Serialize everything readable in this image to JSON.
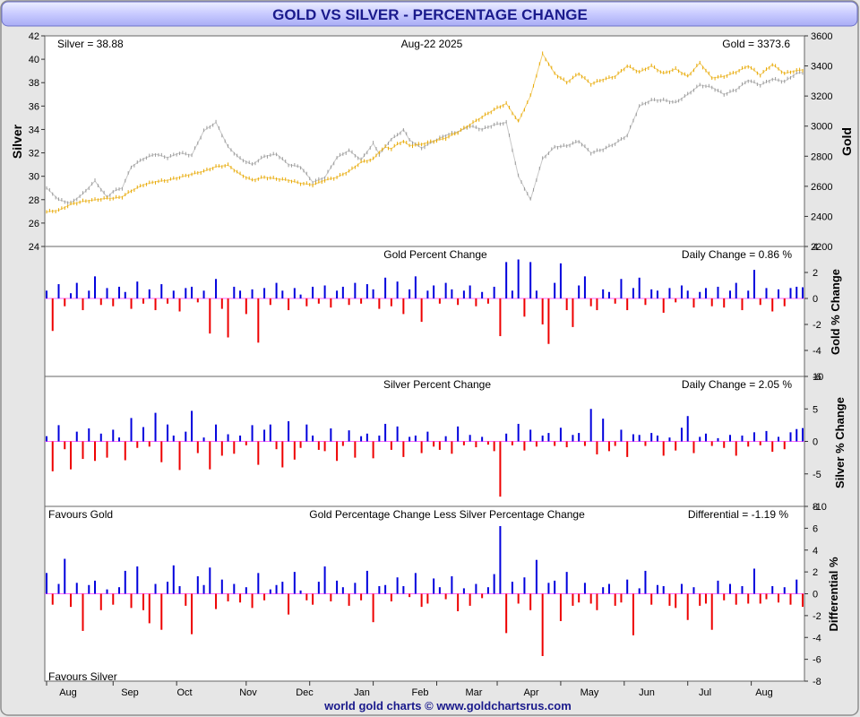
{
  "title": "GOLD VS SILVER - PERCENTAGE CHANGE",
  "footer": "world gold charts © www.goldchartsrus.com",
  "colors": {
    "gold": "#e8a800",
    "silver": "#9a9a9a",
    "up": "#0000dd",
    "down": "#ee0000",
    "title_text": "#1a1a8c",
    "title_band": "#c8caff",
    "background": "#e6e6e6",
    "zero_line": "#ff66ff"
  },
  "x_months": [
    "Aug",
    "Sep",
    "Oct",
    "Nov",
    "Dec",
    "Jan",
    "Feb",
    "Mar",
    "Apr",
    "May",
    "Jun",
    "Jul",
    "Aug"
  ],
  "chart_data": [
    {
      "type": "line",
      "name": "price",
      "title": "Aug-22  2025",
      "left_label": "Silver = 38.88",
      "right_label": "Gold = 3373.6",
      "ylabel_left": "Silver",
      "ylabel_right": "Gold",
      "ylim_left": [
        24,
        42
      ],
      "ylim_right": [
        2200,
        3600
      ],
      "yticks_left": [
        24,
        26,
        28,
        30,
        32,
        34,
        36,
        38,
        40,
        42
      ],
      "yticks_right": [
        2200,
        2400,
        2600,
        2800,
        3000,
        3200,
        3400,
        3600
      ],
      "grid": false,
      "series": [
        {
          "name": "Silver",
          "axis": "left",
          "color_key": "silver",
          "x": [
            0,
            4,
            8,
            12,
            16,
            20,
            22,
            25,
            28,
            32,
            36,
            40,
            44,
            48,
            52,
            56,
            60,
            64,
            68,
            72,
            76,
            80,
            84,
            88,
            92,
            96,
            100,
            104,
            108,
            110,
            112,
            114,
            116,
            118,
            120,
            124,
            128,
            132,
            136,
            140,
            144,
            148,
            152,
            156,
            160,
            164,
            168,
            172,
            176,
            180,
            184,
            188,
            192,
            196,
            200,
            204,
            208,
            212,
            216,
            220,
            224,
            228,
            232,
            236,
            240,
            244,
            248,
            250
          ],
          "values": [
            29.0,
            28.0,
            27.7,
            28.5,
            29.6,
            28.2,
            28.7,
            29.0,
            30.8,
            31.5,
            31.9,
            31.6,
            32.0,
            31.8,
            33.9,
            34.6,
            32.5,
            31.5,
            31.0,
            31.7,
            31.9,
            31.0,
            30.8,
            29.5,
            29.9,
            31.6,
            32.2,
            31.4,
            32.8,
            31.9,
            32.5,
            33.2,
            33.5,
            34.0,
            33.1,
            32.4,
            33.0,
            33.5,
            33.8,
            34.3,
            34.0,
            34.4,
            34.6,
            30.0,
            28.0,
            31.5,
            32.5,
            32.6,
            33.0,
            32.0,
            32.3,
            32.8,
            33.5,
            36.0,
            36.5,
            36.5,
            36.3,
            37.0,
            37.8,
            37.6,
            37.0,
            37.4,
            38.2,
            37.8,
            38.3,
            38.1,
            38.8,
            38.88
          ]
        },
        {
          "name": "Gold",
          "axis": "right",
          "color_key": "gold",
          "x": [
            0,
            4,
            8,
            12,
            16,
            20,
            22,
            25,
            28,
            32,
            36,
            40,
            44,
            48,
            52,
            56,
            60,
            64,
            68,
            72,
            76,
            80,
            84,
            88,
            92,
            96,
            100,
            104,
            108,
            110,
            112,
            114,
            116,
            118,
            120,
            124,
            128,
            132,
            136,
            140,
            144,
            148,
            152,
            156,
            160,
            164,
            168,
            172,
            176,
            180,
            184,
            188,
            192,
            196,
            200,
            204,
            208,
            212,
            216,
            220,
            224,
            228,
            232,
            236,
            240,
            244,
            248,
            250
          ],
          "values": [
            2430,
            2440,
            2480,
            2500,
            2510,
            2520,
            2520,
            2530,
            2570,
            2610,
            2630,
            2640,
            2660,
            2680,
            2700,
            2730,
            2740,
            2680,
            2640,
            2660,
            2650,
            2640,
            2620,
            2610,
            2640,
            2660,
            2700,
            2760,
            2780,
            2830,
            2860,
            2850,
            2880,
            2900,
            2870,
            2880,
            2900,
            2920,
            2960,
            3010,
            3060,
            3110,
            3150,
            3030,
            3200,
            3480,
            3350,
            3290,
            3350,
            3280,
            3310,
            3330,
            3400,
            3360,
            3400,
            3350,
            3380,
            3330,
            3420,
            3320,
            3330,
            3360,
            3400,
            3340,
            3410,
            3350,
            3370,
            3373.6
          ]
        }
      ]
    },
    {
      "type": "bar",
      "name": "gold_pct",
      "title": "Gold Percent Change",
      "right_label": "Daily Change = 0.86 %",
      "ylabel": "Gold % Change",
      "ylim": [
        -6,
        4
      ],
      "yticks": [
        -6,
        -4,
        -2,
        0,
        2,
        4
      ],
      "x": [
        0,
        2,
        4,
        6,
        8,
        10,
        12,
        14,
        16,
        18,
        20,
        22,
        24,
        26,
        28,
        30,
        32,
        34,
        36,
        38,
        40,
        42,
        44,
        46,
        48,
        50,
        52,
        54,
        56,
        58,
        60,
        62,
        64,
        66,
        68,
        70,
        72,
        74,
        76,
        78,
        80,
        82,
        84,
        86,
        88,
        90,
        92,
        94,
        96,
        98,
        100,
        102,
        104,
        106,
        108,
        110,
        112,
        114,
        116,
        118,
        120,
        122,
        124,
        126,
        128,
        130,
        132,
        134,
        136,
        138,
        140,
        142,
        144,
        146,
        148,
        150,
        152,
        154,
        156,
        158,
        160,
        162,
        164,
        166,
        168,
        170,
        172,
        174,
        176,
        178,
        180,
        182,
        184,
        186,
        188,
        190,
        192,
        194,
        196,
        198,
        200,
        202,
        204,
        206,
        208,
        210,
        212,
        214,
        216,
        218,
        220,
        222,
        224,
        226,
        228,
        230,
        232,
        234,
        236,
        238,
        240,
        242,
        244,
        246,
        248,
        250
      ],
      "values": [
        0.6,
        -2.5,
        1.1,
        -0.6,
        0.4,
        1.2,
        -0.9,
        0.6,
        1.7,
        -0.5,
        0.8,
        -0.6,
        0.9,
        0.5,
        -0.8,
        1.3,
        -0.4,
        0.7,
        -0.9,
        1.1,
        -0.4,
        0.6,
        -1.0,
        0.8,
        0.9,
        -0.3,
        0.6,
        -2.7,
        1.5,
        -0.8,
        -3.0,
        0.9,
        0.6,
        -1.2,
        0.7,
        -3.4,
        0.8,
        -0.5,
        1.2,
        0.6,
        -0.9,
        0.8,
        0.3,
        -0.6,
        0.9,
        -0.4,
        1.0,
        -0.7,
        0.6,
        0.9,
        -0.5,
        1.2,
        -0.4,
        1.1,
        0.7,
        -0.8,
        1.6,
        -0.6,
        1.3,
        -1.2,
        0.7,
        1.7,
        -1.8,
        0.6,
        1.0,
        -0.4,
        1.2,
        0.7,
        -0.5,
        0.6,
        1.0,
        -0.6,
        0.5,
        -0.4,
        0.9,
        -2.9,
        2.8,
        0.6,
        3.0,
        -1.4,
        2.8,
        0.6,
        -2.0,
        -3.5,
        1.2,
        2.7,
        -0.9,
        -2.2,
        1.0,
        1.7,
        -0.6,
        -0.9,
        0.7,
        0.5,
        -0.4,
        1.5,
        -0.9,
        0.8,
        1.6,
        -0.5,
        0.7,
        0.6,
        -1.1,
        0.8,
        -0.3,
        1.0,
        0.6,
        -0.7,
        0.5,
        0.8,
        -0.6,
        0.9,
        -0.7,
        0.6,
        1.2,
        -0.9,
        0.6,
        2.2,
        -0.5,
        0.8,
        -1.0,
        0.7,
        -0.6,
        0.8,
        0.9,
        0.86
      ]
    },
    {
      "type": "bar",
      "name": "silver_pct",
      "title": "Silver Percent Change",
      "right_label": "Daily Change = 2.05 %",
      "ylabel": "Silver % Change",
      "ylim": [
        -10,
        10
      ],
      "yticks": [
        -10,
        -5,
        0,
        5,
        10
      ],
      "x": [
        0,
        2,
        4,
        6,
        8,
        10,
        12,
        14,
        16,
        18,
        20,
        22,
        24,
        26,
        28,
        30,
        32,
        34,
        36,
        38,
        40,
        42,
        44,
        46,
        48,
        50,
        52,
        54,
        56,
        58,
        60,
        62,
        64,
        66,
        68,
        70,
        72,
        74,
        76,
        78,
        80,
        82,
        84,
        86,
        88,
        90,
        92,
        94,
        96,
        98,
        100,
        102,
        104,
        106,
        108,
        110,
        112,
        114,
        116,
        118,
        120,
        122,
        124,
        126,
        128,
        130,
        132,
        134,
        136,
        138,
        140,
        142,
        144,
        146,
        148,
        150,
        152,
        154,
        156,
        158,
        160,
        162,
        164,
        166,
        168,
        170,
        172,
        174,
        176,
        178,
        180,
        182,
        184,
        186,
        188,
        190,
        192,
        194,
        196,
        198,
        200,
        202,
        204,
        206,
        208,
        210,
        212,
        214,
        216,
        218,
        220,
        222,
        224,
        226,
        228,
        230,
        232,
        234,
        236,
        238,
        240,
        242,
        244,
        246,
        248,
        250
      ],
      "values": [
        0.8,
        -4.6,
        2.5,
        -1.2,
        -4.3,
        1.5,
        -2.7,
        2.0,
        -3.0,
        1.2,
        -2.5,
        1.8,
        0.6,
        -2.9,
        3.6,
        -1.0,
        2.2,
        -0.8,
        4.4,
        -3.2,
        2.6,
        0.9,
        -4.4,
        1.5,
        4.7,
        -1.8,
        0.6,
        -4.3,
        2.6,
        -2.2,
        1.1,
        -1.9,
        0.9,
        -0.6,
        2.5,
        -3.6,
        1.8,
        2.6,
        -1.2,
        -4.0,
        3.1,
        -2.8,
        -1.0,
        2.6,
        0.9,
        -1.3,
        -1.5,
        2.0,
        -3.0,
        -0.7,
        1.7,
        -2.5,
        0.8,
        1.2,
        -2.6,
        0.9,
        2.7,
        -1.3,
        2.3,
        -2.4,
        0.7,
        0.9,
        -1.8,
        1.5,
        -0.8,
        -1.3,
        0.8,
        -1.9,
        2.3,
        -0.6,
        1.0,
        -0.9,
        0.7,
        -0.5,
        -1.5,
        -8.5,
        1.2,
        -0.6,
        2.7,
        -1.4,
        1.8,
        -0.8,
        0.9,
        1.3,
        -0.7,
        2.1,
        -0.9,
        1.0,
        1.3,
        -0.7,
        5.0,
        -2.0,
        3.5,
        -1.5,
        -0.7,
        1.8,
        -2.4,
        1.1,
        1.0,
        -0.7,
        1.3,
        0.9,
        -2.2,
        0.6,
        -1.4,
        2.1,
        3.9,
        -1.8,
        0.7,
        1.2,
        -0.7,
        0.5,
        -1.0,
        1.0,
        -2.2,
        0.9,
        -0.8,
        1.4,
        -0.6,
        1.6,
        -1.6,
        0.7,
        -1.2,
        1.4,
        1.9,
        2.05
      ]
    },
    {
      "type": "bar",
      "name": "differential",
      "title": "Gold Percentage Change Less Silver Percentage Change",
      "right_label": "Differential = -1.19 %",
      "top_left_label": "Favours Gold",
      "bottom_left_label": "Favours Silver",
      "ylabel": "Differential %",
      "ylim": [
        -8,
        8
      ],
      "yticks": [
        -8,
        -6,
        -4,
        -2,
        0,
        2,
        4,
        6,
        8
      ],
      "x": [
        0,
        2,
        4,
        6,
        8,
        10,
        12,
        14,
        16,
        18,
        20,
        22,
        24,
        26,
        28,
        30,
        32,
        34,
        36,
        38,
        40,
        42,
        44,
        46,
        48,
        50,
        52,
        54,
        56,
        58,
        60,
        62,
        64,
        66,
        68,
        70,
        72,
        74,
        76,
        78,
        80,
        82,
        84,
        86,
        88,
        90,
        92,
        94,
        96,
        98,
        100,
        102,
        104,
        106,
        108,
        110,
        112,
        114,
        116,
        118,
        120,
        122,
        124,
        126,
        128,
        130,
        132,
        134,
        136,
        138,
        140,
        142,
        144,
        146,
        148,
        150,
        152,
        154,
        156,
        158,
        160,
        162,
        164,
        166,
        168,
        170,
        172,
        174,
        176,
        178,
        180,
        182,
        184,
        186,
        188,
        190,
        192,
        194,
        196,
        198,
        200,
        202,
        204,
        206,
        208,
        210,
        212,
        214,
        216,
        218,
        220,
        222,
        224,
        226,
        228,
        230,
        232,
        234,
        236,
        238,
        240,
        242,
        244,
        246,
        248,
        250
      ],
      "values": [
        1.9,
        -1.0,
        0.9,
        3.2,
        -1.2,
        1.0,
        -3.4,
        0.8,
        1.2,
        -1.5,
        0.4,
        -1.0,
        0.6,
        2.1,
        -1.3,
        2.5,
        -1.5,
        -2.7,
        0.9,
        -3.3,
        1.1,
        2.6,
        0.7,
        -1.1,
        -3.7,
        1.6,
        0.8,
        2.4,
        -1.4,
        1.3,
        -0.7,
        0.9,
        -0.8,
        0.6,
        -1.3,
        1.9,
        -0.6,
        0.4,
        0.8,
        1.1,
        -1.9,
        2.0,
        0.3,
        -0.6,
        -1.0,
        1.1,
        2.5,
        -0.7,
        1.2,
        0.6,
        -1.1,
        1.0,
        -0.6,
        2.1,
        -2.6,
        0.7,
        0.8,
        -0.7,
        1.5,
        0.7,
        -0.3,
        1.9,
        -1.2,
        -0.9,
        1.4,
        0.6,
        -0.5,
        1.6,
        -1.6,
        0.5,
        -1.1,
        0.9,
        -0.4,
        0.6,
        1.8,
        6.2,
        -3.6,
        1.1,
        -0.9,
        1.5,
        -1.5,
        3.1,
        -5.7,
        1.0,
        1.2,
        -2.5,
        2.0,
        -1.1,
        -0.8,
        1.0,
        -0.9,
        -1.5,
        0.6,
        0.9,
        -1.1,
        -0.8,
        1.3,
        -3.8,
        0.5,
        2.1,
        -1.0,
        0.8,
        0.7,
        -1.1,
        -1.3,
        0.9,
        -2.4,
        0.6,
        -1.1,
        -0.9,
        -3.3,
        1.2,
        -0.6,
        0.9,
        -1.0,
        0.7,
        -0.9,
        2.3,
        -0.9,
        -0.5,
        0.7,
        -0.8,
        0.6,
        -1.0,
        1.3,
        -1.19
      ]
    }
  ]
}
